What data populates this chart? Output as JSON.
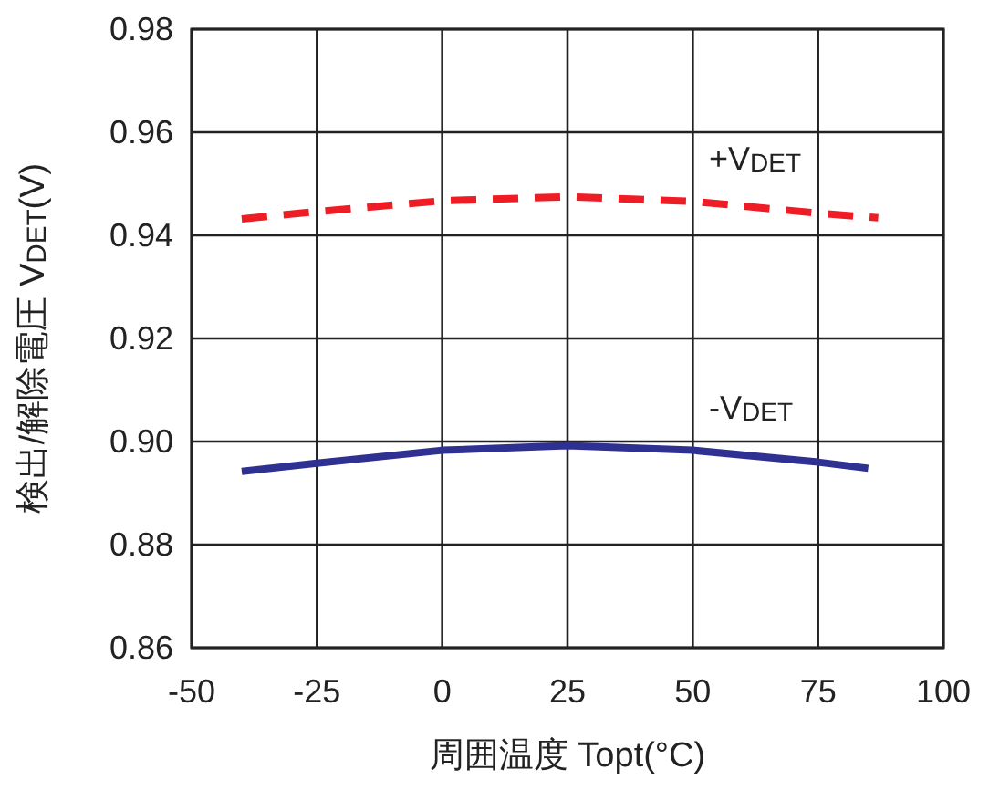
{
  "chart_data": {
    "type": "line",
    "xlabel": "周囲温度 Topt(°C)",
    "ylabel": "検出/解除電圧 V$_{DET}$(V)",
    "xlim": [
      -50,
      100
    ],
    "xticks": [
      -50,
      -25,
      0,
      25,
      50,
      75,
      100
    ],
    "ylim": [
      0.86,
      0.98
    ],
    "yticks": [
      {
        "value": 0.86,
        "label": "0.86"
      },
      {
        "value": 0.88,
        "label": "0.88"
      },
      {
        "value": 0.9,
        "label": "0.90"
      },
      {
        "value": 0.92,
        "label": "0.92"
      },
      {
        "value": 0.94,
        "label": "0.94"
      },
      {
        "value": 0.96,
        "label": "0.96"
      },
      {
        "value": 0.98,
        "label": "0.98"
      }
    ],
    "grid": true,
    "series": [
      {
        "name": "+V$_{DET}$",
        "color": "#ee1c25",
        "line_style": "dashed",
        "x": [
          -40,
          -25,
          0,
          25,
          50,
          75,
          87
        ],
        "values": [
          0.9432,
          0.9446,
          0.9467,
          0.9475,
          0.9466,
          0.9443,
          0.9434
        ]
      },
      {
        "name": "-V$_{DET}$",
        "color": "#2e3192",
        "line_style": "solid",
        "x": [
          -40,
          -25,
          0,
          25,
          50,
          75,
          85
        ],
        "values": [
          0.8942,
          0.8958,
          0.8983,
          0.8992,
          0.8983,
          0.896,
          0.8948
        ]
      }
    ]
  }
}
